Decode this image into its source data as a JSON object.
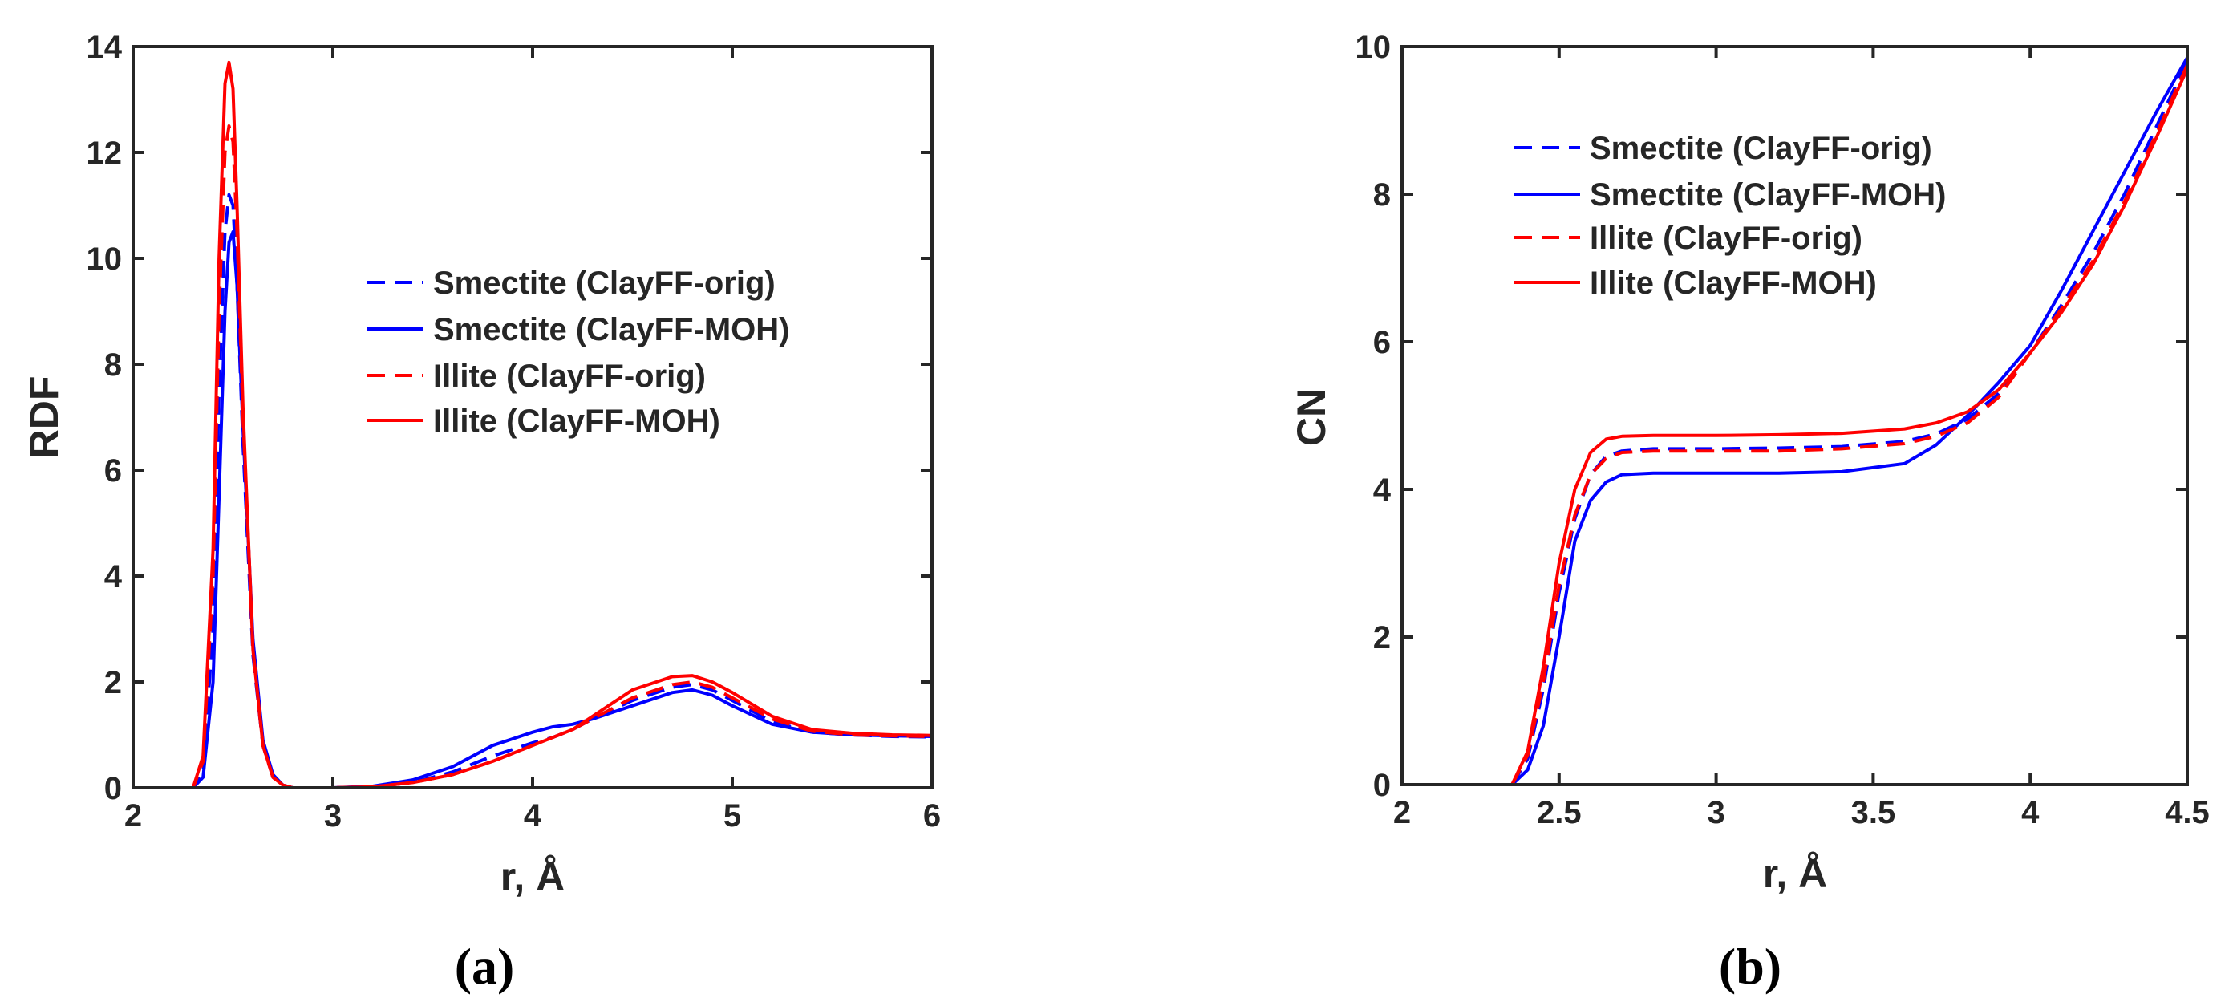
{
  "chart_data": [
    {
      "type": "line",
      "panel_label": "(a)",
      "title": "",
      "xlabel": "r, Å",
      "ylabel": "RDF",
      "xlim": [
        2,
        6
      ],
      "ylim": [
        0,
        14
      ],
      "xticks": [
        2,
        3,
        4,
        5,
        6
      ],
      "yticks": [
        0,
        2,
        4,
        6,
        8,
        10,
        12,
        14
      ],
      "xtick_labels": [
        "2",
        "3",
        "4",
        "5",
        "6"
      ],
      "ytick_labels": [
        "0",
        "2",
        "4",
        "6",
        "8",
        "10",
        "12",
        "14"
      ],
      "grid": false,
      "legend_position": "center-right",
      "series": [
        {
          "name": "Smectite (ClayFF-orig)",
          "color": "#0000ff",
          "dash": "dashed",
          "x": [
            2.0,
            2.3,
            2.35,
            2.4,
            2.43,
            2.46,
            2.48,
            2.5,
            2.52,
            2.55,
            2.6,
            2.65,
            2.7,
            2.75,
            2.8,
            2.9,
            3.0,
            3.2,
            3.4,
            3.6,
            3.8,
            4.0,
            4.1,
            4.2,
            4.3,
            4.5,
            4.7,
            4.8,
            4.9,
            5.0,
            5.2,
            5.4,
            5.6,
            5.8,
            6.0
          ],
          "y": [
            0,
            0,
            0.3,
            3.0,
            7.5,
            10.5,
            11.2,
            11.0,
            9.5,
            6.5,
            2.5,
            0.8,
            0.2,
            0.05,
            0,
            0,
            0,
            0.02,
            0.1,
            0.3,
            0.6,
            0.85,
            0.95,
            1.1,
            1.3,
            1.65,
            1.9,
            1.95,
            1.85,
            1.65,
            1.25,
            1.05,
            1.0,
            0.97,
            0.96
          ]
        },
        {
          "name": "Smectite (ClayFF-MOH)",
          "color": "#0000ff",
          "dash": "solid",
          "x": [
            2.0,
            2.3,
            2.35,
            2.4,
            2.43,
            2.46,
            2.48,
            2.5,
            2.52,
            2.55,
            2.6,
            2.65,
            2.7,
            2.75,
            2.8,
            2.9,
            3.0,
            3.2,
            3.4,
            3.6,
            3.8,
            4.0,
            4.1,
            4.2,
            4.3,
            4.5,
            4.7,
            4.8,
            4.9,
            5.0,
            5.2,
            5.4,
            5.6,
            5.8,
            6.0
          ],
          "y": [
            0,
            0,
            0.2,
            2.0,
            5.5,
            9.0,
            10.3,
            10.5,
            9.5,
            6.8,
            2.8,
            0.9,
            0.25,
            0.05,
            0,
            0,
            0,
            0.03,
            0.15,
            0.4,
            0.8,
            1.05,
            1.15,
            1.2,
            1.3,
            1.55,
            1.8,
            1.85,
            1.75,
            1.55,
            1.2,
            1.05,
            1.0,
            0.98,
            0.97
          ]
        },
        {
          "name": "Illite (ClayFF-orig)",
          "color": "#ff0000",
          "dash": "dashed",
          "x": [
            2.0,
            2.3,
            2.35,
            2.4,
            2.43,
            2.46,
            2.48,
            2.5,
            2.52,
            2.55,
            2.6,
            2.65,
            2.7,
            2.75,
            2.8,
            2.9,
            3.0,
            3.2,
            3.4,
            3.6,
            3.8,
            4.0,
            4.1,
            4.2,
            4.3,
            4.5,
            4.7,
            4.8,
            4.9,
            5.0,
            5.2,
            5.4,
            5.6,
            5.8,
            6.0
          ],
          "y": [
            0,
            0,
            0.5,
            4.0,
            9.0,
            12.0,
            12.5,
            12.2,
            10.5,
            7.0,
            2.6,
            0.8,
            0.2,
            0.05,
            0,
            0,
            0,
            0.02,
            0.1,
            0.25,
            0.5,
            0.8,
            0.95,
            1.1,
            1.3,
            1.7,
            1.95,
            2.0,
            1.9,
            1.7,
            1.3,
            1.07,
            1.0,
            0.98,
            0.97
          ]
        },
        {
          "name": "Illite (ClayFF-MOH)",
          "color": "#ff0000",
          "dash": "solid",
          "x": [
            2.0,
            2.3,
            2.35,
            2.4,
            2.43,
            2.46,
            2.48,
            2.5,
            2.52,
            2.55,
            2.6,
            2.65,
            2.7,
            2.75,
            2.8,
            2.9,
            3.0,
            3.2,
            3.4,
            3.6,
            3.8,
            4.0,
            4.1,
            4.2,
            4.3,
            4.5,
            4.7,
            4.8,
            4.9,
            5.0,
            5.2,
            5.4,
            5.6,
            5.8,
            6.0
          ],
          "y": [
            0,
            0,
            0.6,
            4.5,
            10.0,
            13.3,
            13.7,
            13.2,
            11.0,
            7.2,
            2.6,
            0.8,
            0.2,
            0.05,
            0,
            0,
            0,
            0.02,
            0.1,
            0.25,
            0.5,
            0.8,
            0.95,
            1.1,
            1.35,
            1.85,
            2.1,
            2.12,
            2.0,
            1.8,
            1.35,
            1.1,
            1.03,
            1.0,
            0.99
          ]
        }
      ]
    },
    {
      "type": "line",
      "panel_label": "(b)",
      "title": "",
      "xlabel": "r, Å",
      "ylabel": "CN",
      "xlim": [
        2,
        4.5
      ],
      "ylim": [
        0,
        10
      ],
      "xticks": [
        2,
        2.5,
        3,
        3.5,
        4,
        4.5
      ],
      "yticks": [
        0,
        2,
        4,
        6,
        8,
        10
      ],
      "xtick_labels": [
        "2",
        "2.5",
        "3",
        "3.5",
        "4",
        "4.5"
      ],
      "ytick_labels": [
        "0",
        "2",
        "4",
        "6",
        "8",
        "10"
      ],
      "grid": false,
      "legend_position": "top-left",
      "series": [
        {
          "name": "Smectite (ClayFF-orig)",
          "color": "#0000ff",
          "dash": "dashed",
          "x": [
            2.0,
            2.35,
            2.4,
            2.45,
            2.5,
            2.55,
            2.6,
            2.65,
            2.7,
            2.8,
            3.0,
            3.2,
            3.4,
            3.6,
            3.7,
            3.8,
            3.9,
            4.0,
            4.1,
            4.2,
            4.3,
            4.4,
            4.5
          ],
          "y": [
            0,
            0,
            0.35,
            1.3,
            2.6,
            3.6,
            4.2,
            4.45,
            4.52,
            4.55,
            4.55,
            4.56,
            4.58,
            4.65,
            4.75,
            4.95,
            5.3,
            5.85,
            6.5,
            7.2,
            8.0,
            8.9,
            9.8
          ]
        },
        {
          "name": "Smectite (ClayFF-MOH)",
          "color": "#0000ff",
          "dash": "solid",
          "x": [
            2.0,
            2.35,
            2.4,
            2.45,
            2.5,
            2.55,
            2.6,
            2.65,
            2.7,
            2.8,
            3.0,
            3.2,
            3.4,
            3.6,
            3.7,
            3.8,
            3.9,
            4.0,
            4.1,
            4.2,
            4.3,
            4.4,
            4.5
          ],
          "y": [
            0,
            0,
            0.2,
            0.8,
            2.0,
            3.3,
            3.85,
            4.1,
            4.2,
            4.22,
            4.22,
            4.22,
            4.24,
            4.35,
            4.6,
            5.0,
            5.45,
            5.95,
            6.7,
            7.5,
            8.3,
            9.1,
            9.85
          ]
        },
        {
          "name": "Illite (ClayFF-orig)",
          "color": "#ff0000",
          "dash": "dashed",
          "x": [
            2.0,
            2.35,
            2.4,
            2.45,
            2.5,
            2.55,
            2.6,
            2.65,
            2.7,
            2.8,
            3.0,
            3.2,
            3.4,
            3.6,
            3.7,
            3.8,
            3.9,
            4.0,
            4.1,
            4.2,
            4.3,
            4.4,
            4.5
          ],
          "y": [
            0,
            0,
            0.4,
            1.4,
            2.7,
            3.65,
            4.2,
            4.42,
            4.5,
            4.52,
            4.52,
            4.52,
            4.55,
            4.62,
            4.72,
            4.9,
            5.25,
            5.85,
            6.45,
            7.1,
            7.9,
            8.8,
            9.75
          ]
        },
        {
          "name": "Illite (ClayFF-MOH)",
          "color": "#ff0000",
          "dash": "solid",
          "x": [
            2.0,
            2.35,
            2.4,
            2.45,
            2.5,
            2.55,
            2.6,
            2.65,
            2.7,
            2.8,
            3.0,
            3.2,
            3.4,
            3.6,
            3.7,
            3.8,
            3.9,
            4.0,
            4.1,
            4.2,
            4.3,
            4.4,
            4.5
          ],
          "y": [
            0,
            0,
            0.45,
            1.6,
            3.0,
            4.0,
            4.5,
            4.68,
            4.72,
            4.73,
            4.73,
            4.74,
            4.76,
            4.82,
            4.9,
            5.05,
            5.35,
            5.85,
            6.4,
            7.05,
            7.85,
            8.75,
            9.7
          ]
        }
      ]
    }
  ]
}
